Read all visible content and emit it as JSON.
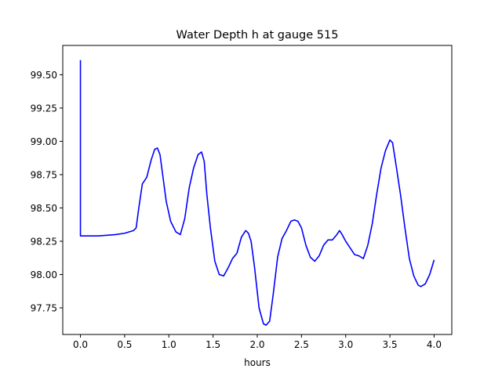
{
  "chart_data": {
    "type": "line",
    "title": "Water Depth h at gauge 515",
    "xlabel": "hours",
    "ylabel": "",
    "xlim": [
      -0.2,
      4.2
    ],
    "ylim": [
      97.55,
      99.72
    ],
    "xticks": [
      0.0,
      0.5,
      1.0,
      1.5,
      2.0,
      2.5,
      3.0,
      3.5,
      4.0
    ],
    "xtick_labels": [
      "0.0",
      "0.5",
      "1.0",
      "1.5",
      "2.0",
      "2.5",
      "3.0",
      "3.5",
      "4.0"
    ],
    "yticks": [
      97.75,
      98.0,
      98.25,
      98.5,
      98.75,
      99.0,
      99.25,
      99.5
    ],
    "ytick_labels": [
      "97.75",
      "98.00",
      "98.25",
      "98.50",
      "98.75",
      "99.00",
      "99.25",
      "99.50"
    ],
    "grid": false,
    "series": [
      {
        "color": "#0000ff",
        "x": [
          0.0,
          0.0,
          0.01,
          0.2,
          0.4,
          0.5,
          0.6,
          0.63,
          0.66,
          0.7,
          0.75,
          0.8,
          0.84,
          0.87,
          0.9,
          0.93,
          0.97,
          1.02,
          1.08,
          1.13,
          1.18,
          1.23,
          1.28,
          1.33,
          1.37,
          1.4,
          1.43,
          1.47,
          1.52,
          1.57,
          1.62,
          1.67,
          1.72,
          1.77,
          1.82,
          1.87,
          1.9,
          1.93,
          1.97,
          2.02,
          2.07,
          2.1,
          2.14,
          2.18,
          2.23,
          2.28,
          2.33,
          2.38,
          2.42,
          2.46,
          2.5,
          2.55,
          2.6,
          2.65,
          2.7,
          2.75,
          2.8,
          2.85,
          2.9,
          2.93,
          2.96,
          3.0,
          3.05,
          3.1,
          3.15,
          3.2,
          3.25,
          3.3,
          3.35,
          3.4,
          3.45,
          3.5,
          3.53,
          3.57,
          3.62,
          3.67,
          3.72,
          3.77,
          3.82,
          3.85,
          3.9,
          3.95,
          4.0
        ],
        "y": [
          99.61,
          98.29,
          98.29,
          98.29,
          98.3,
          98.31,
          98.33,
          98.35,
          98.5,
          98.68,
          98.73,
          98.86,
          98.94,
          98.95,
          98.9,
          98.75,
          98.55,
          98.4,
          98.32,
          98.3,
          98.42,
          98.65,
          98.8,
          98.9,
          98.92,
          98.85,
          98.6,
          98.35,
          98.1,
          98.0,
          97.99,
          98.05,
          98.12,
          98.16,
          98.28,
          98.33,
          98.31,
          98.25,
          98.05,
          97.75,
          97.63,
          97.62,
          97.65,
          97.85,
          98.13,
          98.27,
          98.33,
          98.4,
          98.41,
          98.4,
          98.35,
          98.22,
          98.13,
          98.1,
          98.14,
          98.22,
          98.26,
          98.26,
          98.3,
          98.33,
          98.3,
          98.25,
          98.2,
          98.15,
          98.14,
          98.12,
          98.22,
          98.38,
          98.6,
          98.8,
          98.93,
          99.01,
          98.99,
          98.82,
          98.6,
          98.35,
          98.12,
          97.99,
          97.92,
          97.91,
          97.93,
          98.0,
          98.11
        ]
      }
    ]
  }
}
